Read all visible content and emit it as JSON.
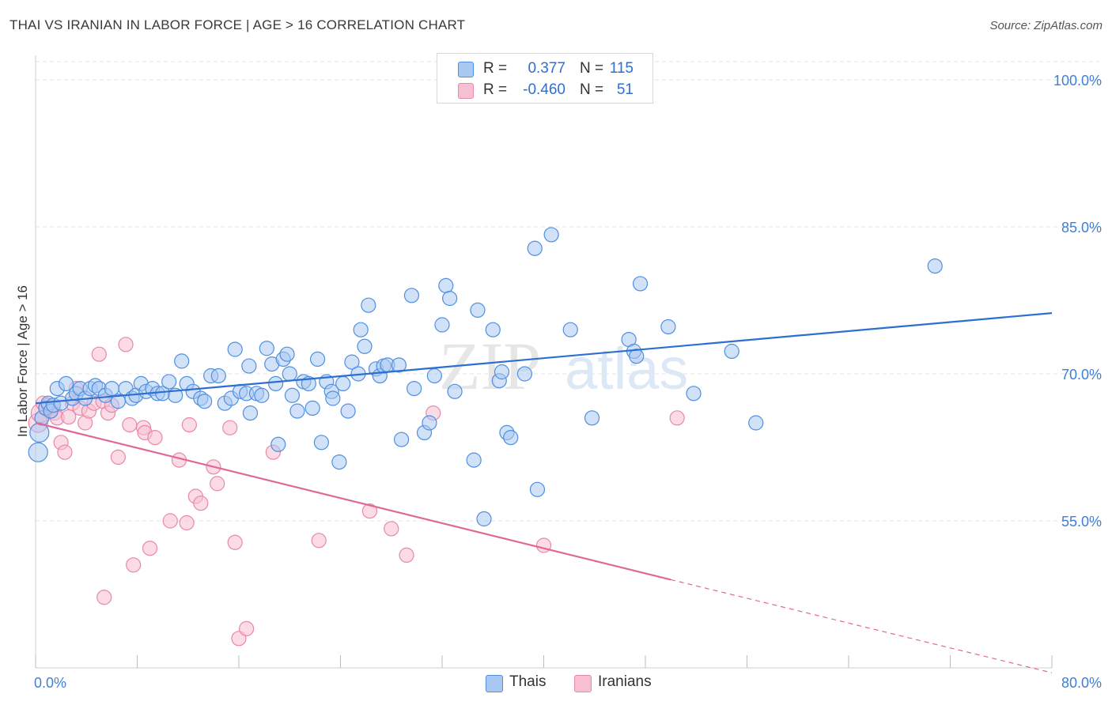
{
  "title": "THAI VS IRANIAN IN LABOR FORCE | AGE > 16 CORRELATION CHART",
  "source": "Source: ZipAtlas.com",
  "watermark": {
    "zip": "ZIP",
    "atlas": "atlas"
  },
  "colors": {
    "thai_fill": "#a9c8f2",
    "thai_stroke": "#4f8fe0",
    "thai_line": "#2d6fd1",
    "iran_fill": "#f7c0d2",
    "iran_stroke": "#e888a8",
    "iran_line": "#e0679a",
    "tick_label": "#3f7fd6",
    "grid": "#e3e3e3"
  },
  "stats": [
    {
      "r_label": "R =",
      "r_value": "0.377",
      "n_label": "N =",
      "n_value": "115",
      "series": "thai"
    },
    {
      "r_label": "R =",
      "r_value": "-0.460",
      "n_label": "N =",
      "n_value": "51",
      "series": "iran"
    }
  ],
  "legend": [
    {
      "label": "Thais",
      "series": "thai"
    },
    {
      "label": "Iranians",
      "series": "iran"
    }
  ],
  "chart_data": {
    "type": "scatter",
    "title": "THAI VS IRANIAN IN LABOR FORCE | AGE > 16 CORRELATION CHART",
    "xlabel": "",
    "ylabel": "In Labor Force | Age > 16",
    "xlim": [
      0,
      80
    ],
    "ylim": [
      40,
      102.5
    ],
    "x_tick_labels": [
      "0.0%",
      "80.0%"
    ],
    "y_ticks": [
      55,
      70,
      85,
      100
    ],
    "y_tick_labels": [
      "55.0%",
      "70.0%",
      "85.0%",
      "100.0%"
    ],
    "grid": "horizontal dashed",
    "legend_position": "bottom-center",
    "series": [
      {
        "name": "Thais",
        "trend": {
          "x0": 0,
          "y0": 67.0,
          "x1": 80,
          "y1": 76.2
        },
        "points": [
          [
            0.2,
            62.0
          ],
          [
            0.3,
            64.0
          ],
          [
            0.5,
            65.5
          ],
          [
            0.8,
            66.5
          ],
          [
            1.0,
            67.0
          ],
          [
            1.2,
            66.2
          ],
          [
            1.4,
            66.8
          ],
          [
            1.7,
            68.5
          ],
          [
            2.0,
            67.0
          ],
          [
            2.4,
            69.0
          ],
          [
            2.9,
            67.5
          ],
          [
            3.2,
            68.0
          ],
          [
            3.5,
            68.5
          ],
          [
            3.9,
            67.5
          ],
          [
            4.3,
            68.5
          ],
          [
            4.7,
            68.8
          ],
          [
            5.0,
            68.5
          ],
          [
            5.5,
            67.8
          ],
          [
            6.0,
            68.5
          ],
          [
            6.5,
            67.2
          ],
          [
            7.1,
            68.5
          ],
          [
            7.6,
            67.5
          ],
          [
            7.9,
            67.8
          ],
          [
            8.3,
            69.0
          ],
          [
            8.7,
            68.2
          ],
          [
            9.2,
            68.5
          ],
          [
            9.6,
            68.0
          ],
          [
            10.0,
            68.0
          ],
          [
            10.5,
            69.2
          ],
          [
            11.0,
            67.8
          ],
          [
            11.5,
            71.3
          ],
          [
            11.9,
            69.0
          ],
          [
            12.4,
            68.2
          ],
          [
            13.0,
            67.5
          ],
          [
            13.3,
            67.2
          ],
          [
            13.8,
            69.8
          ],
          [
            14.4,
            69.8
          ],
          [
            14.9,
            67.0
          ],
          [
            15.4,
            67.5
          ],
          [
            15.7,
            72.5
          ],
          [
            16.1,
            68.2
          ],
          [
            16.6,
            68.0
          ],
          [
            16.8,
            70.8
          ],
          [
            16.9,
            66.0
          ],
          [
            17.4,
            68.0
          ],
          [
            17.8,
            67.8
          ],
          [
            18.2,
            72.6
          ],
          [
            18.6,
            71.0
          ],
          [
            18.9,
            69.0
          ],
          [
            19.1,
            62.8
          ],
          [
            19.5,
            71.5
          ],
          [
            19.8,
            72.0
          ],
          [
            20.0,
            70.0
          ],
          [
            20.2,
            67.8
          ],
          [
            20.6,
            66.2
          ],
          [
            21.1,
            69.2
          ],
          [
            21.5,
            69.0
          ],
          [
            21.8,
            66.5
          ],
          [
            22.2,
            71.5
          ],
          [
            22.5,
            63.0
          ],
          [
            22.9,
            69.2
          ],
          [
            23.3,
            68.2
          ],
          [
            23.4,
            67.5
          ],
          [
            23.9,
            61.0
          ],
          [
            24.2,
            69.0
          ],
          [
            24.6,
            66.2
          ],
          [
            24.9,
            71.2
          ],
          [
            25.4,
            70.0
          ],
          [
            25.6,
            74.5
          ],
          [
            25.9,
            72.8
          ],
          [
            26.2,
            77.0
          ],
          [
            26.8,
            70.5
          ],
          [
            27.1,
            69.8
          ],
          [
            27.4,
            70.8
          ],
          [
            27.7,
            70.9
          ],
          [
            28.6,
            70.9
          ],
          [
            28.8,
            63.3
          ],
          [
            29.6,
            78.0
          ],
          [
            29.8,
            68.5
          ],
          [
            30.6,
            64.0
          ],
          [
            31.0,
            65.0
          ],
          [
            31.4,
            69.8
          ],
          [
            32.0,
            75.0
          ],
          [
            32.3,
            79.0
          ],
          [
            32.6,
            77.7
          ],
          [
            33.0,
            68.2
          ],
          [
            34.5,
            61.2
          ],
          [
            34.8,
            76.5
          ],
          [
            35.3,
            55.2
          ],
          [
            36.0,
            74.5
          ],
          [
            36.5,
            69.3
          ],
          [
            36.7,
            70.2
          ],
          [
            37.1,
            64.0
          ],
          [
            37.4,
            63.5
          ],
          [
            38.5,
            70.0
          ],
          [
            39.3,
            82.8
          ],
          [
            39.5,
            58.2
          ],
          [
            40.6,
            84.2
          ],
          [
            42.1,
            74.5
          ],
          [
            43.8,
            65.5
          ],
          [
            46.7,
            73.5
          ],
          [
            47.1,
            72.3
          ],
          [
            47.3,
            71.8
          ],
          [
            47.6,
            79.2
          ],
          [
            49.8,
            74.8
          ],
          [
            51.8,
            68.0
          ],
          [
            54.8,
            72.3
          ],
          [
            56.7,
            65.0
          ],
          [
            70.8,
            81.0
          ]
        ]
      },
      {
        "name": "Iranians",
        "trend": {
          "x0": 0,
          "y0": 65.0,
          "x1": 50,
          "y1": 49.0
        },
        "trend_dashed_to": {
          "x": 80,
          "y": 39.5
        },
        "points": [
          [
            0.2,
            65.0
          ],
          [
            0.4,
            66.0
          ],
          [
            0.6,
            67.0
          ],
          [
            0.8,
            66.5
          ],
          [
            1.1,
            66.2
          ],
          [
            1.3,
            66.6
          ],
          [
            1.5,
            66.0
          ],
          [
            1.7,
            65.5
          ],
          [
            2.0,
            63.0
          ],
          [
            2.3,
            62.0
          ],
          [
            2.6,
            65.6
          ],
          [
            2.9,
            67.0
          ],
          [
            3.2,
            68.5
          ],
          [
            3.5,
            66.5
          ],
          [
            3.9,
            65.0
          ],
          [
            4.2,
            66.2
          ],
          [
            4.6,
            67.0
          ],
          [
            5.0,
            72.0
          ],
          [
            5.3,
            67.2
          ],
          [
            5.7,
            66.0
          ],
          [
            6.0,
            66.8
          ],
          [
            6.5,
            61.5
          ],
          [
            7.1,
            73.0
          ],
          [
            7.4,
            64.8
          ],
          [
            7.7,
            50.5
          ],
          [
            8.5,
            64.5
          ],
          [
            8.6,
            64.0
          ],
          [
            9.0,
            52.2
          ],
          [
            9.4,
            63.5
          ],
          [
            10.6,
            55.0
          ],
          [
            11.3,
            61.2
          ],
          [
            11.9,
            54.8
          ],
          [
            12.1,
            64.8
          ],
          [
            12.6,
            57.5
          ],
          [
            13.0,
            56.8
          ],
          [
            14.0,
            60.5
          ],
          [
            14.3,
            58.8
          ],
          [
            15.3,
            64.5
          ],
          [
            15.7,
            52.8
          ],
          [
            16.0,
            43.0
          ],
          [
            16.6,
            44.0
          ],
          [
            18.7,
            62.0
          ],
          [
            22.3,
            53.0
          ],
          [
            26.3,
            56.0
          ],
          [
            28.0,
            54.2
          ],
          [
            29.2,
            51.5
          ],
          [
            31.3,
            66.0
          ],
          [
            5.4,
            47.2
          ],
          [
            40.0,
            52.5
          ],
          [
            50.5,
            65.5
          ],
          [
            1.0,
            66.8
          ]
        ]
      }
    ]
  }
}
